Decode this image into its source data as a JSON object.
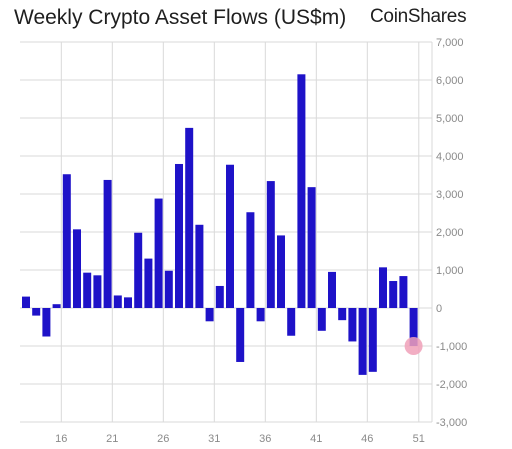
{
  "title": "Weekly Crypto Asset Flows (US$m)",
  "brand": "CoinShares",
  "colors": {
    "bar": "#1e12c8",
    "grid": "#d9d9d9",
    "highlight": "#f0a0b8"
  },
  "chart_data": {
    "type": "bar",
    "title": "Weekly Crypto Asset Flows (US$m)",
    "x": [
      12,
      13,
      14,
      15,
      16,
      17,
      18,
      19,
      20,
      21,
      22,
      23,
      24,
      25,
      26,
      27,
      28,
      29,
      30,
      31,
      32,
      33,
      34,
      35,
      36,
      37,
      38,
      39,
      40,
      41,
      42,
      43,
      44,
      45,
      46,
      47,
      48,
      49,
      50,
      51
    ],
    "values": [
      300,
      -200,
      -750,
      100,
      3520,
      2070,
      930,
      860,
      3370,
      330,
      280,
      1980,
      1300,
      2880,
      980,
      3790,
      4740,
      2190,
      -350,
      580,
      3770,
      -1420,
      2520,
      -350,
      3340,
      1910,
      -730,
      6150,
      3180,
      -600,
      950,
      -320,
      -880,
      -1760,
      -1680,
      1070,
      710,
      840,
      -1000,
      0
    ],
    "x_ticks": [
      "16",
      "21",
      "26",
      "31",
      "36",
      "41",
      "46",
      "51"
    ],
    "y_ticks": [
      "-3,000",
      "-2,000",
      "-1,000",
      "0",
      "1,000",
      "2,000",
      "3,000",
      "4,000",
      "5,000",
      "6,000",
      "7,000"
    ],
    "ylim": [
      -3000,
      7000
    ],
    "grid": true,
    "highlight_week": 51
  }
}
